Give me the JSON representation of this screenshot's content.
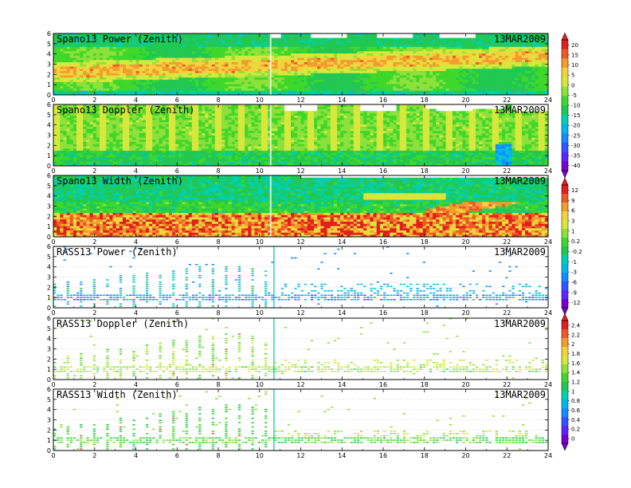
{
  "colors": [
    "#7a00d0",
    "#5a28ff",
    "#2f57ff",
    "#138cff",
    "#00b9ea",
    "#00cfb0",
    "#21c852",
    "#3fd82a",
    "#8ee03a",
    "#d6e83c",
    "#f4d23d",
    "#f39c2f",
    "#ee5a26",
    "#e11f1f"
  ],
  "chart_data": [
    {
      "type": "heatmap",
      "title": "Spano13 Power (Zenith)",
      "date": "13MAR2009",
      "x_ticks": [
        "0",
        "2",
        "4",
        "6",
        "8",
        "10",
        "12",
        "14",
        "16",
        "18",
        "20",
        "22",
        "24"
      ],
      "y_ticks": [
        "0",
        "1",
        "2",
        "3",
        "4",
        "5",
        "6"
      ],
      "xlim": [
        0,
        24
      ],
      "ylim": [
        0,
        6
      ],
      "pattern": "power",
      "colorbar_id": 0
    },
    {
      "type": "heatmap",
      "title": "Spano13 Doppler (Zenith)",
      "date": "13MAR2009",
      "x_ticks": [
        "0",
        "2",
        "4",
        "6",
        "8",
        "10",
        "12",
        "14",
        "16",
        "18",
        "20",
        "22",
        "24"
      ],
      "y_ticks": [
        "0",
        "1",
        "2",
        "3",
        "4",
        "5",
        "6"
      ],
      "xlim": [
        0,
        24
      ],
      "ylim": [
        0,
        6
      ],
      "pattern": "doppler",
      "colorbar_id": 0
    },
    {
      "type": "heatmap",
      "title": "Spano13 Width (Zenith)",
      "date": "13MAR2009",
      "x_ticks": [
        "0",
        "2",
        "4",
        "6",
        "8",
        "10",
        "12",
        "14",
        "16",
        "18",
        "20",
        "22",
        "24"
      ],
      "y_ticks": [
        "0",
        "1",
        "2",
        "3",
        "4",
        "5",
        "6"
      ],
      "xlim": [
        0,
        24
      ],
      "ylim": [
        0,
        6
      ],
      "pattern": "width",
      "colorbar_id": 1
    },
    {
      "type": "heatmap",
      "title": "RASS13 Power (Zenith)",
      "date": "13MAR2009",
      "x_ticks": [
        "0",
        "2",
        "4",
        "6",
        "8",
        "10",
        "12",
        "14",
        "16",
        "18",
        "20",
        "22",
        "24"
      ],
      "y_ticks": [
        "0",
        "1",
        "2",
        "3",
        "4",
        "5",
        "6"
      ],
      "xlim": [
        0,
        24
      ],
      "ylim": [
        0,
        6
      ],
      "pattern": "rass_power",
      "colorbar_id": 1
    },
    {
      "type": "heatmap",
      "title": "RASS13 Doppler (Zenith)",
      "date": "13MAR2009",
      "x_ticks": [
        "0",
        "2",
        "4",
        "6",
        "8",
        "10",
        "12",
        "14",
        "16",
        "18",
        "20",
        "22",
        "24"
      ],
      "y_ticks": [
        "0",
        "1",
        "2",
        "3",
        "4",
        "5",
        "6"
      ],
      "xlim": [
        0,
        24
      ],
      "ylim": [
        0,
        6
      ],
      "pattern": "rass_doppler",
      "colorbar_id": 2
    },
    {
      "type": "heatmap",
      "title": "RASS13 Width (Zenith)",
      "date": "13MAR2009",
      "x_ticks": [
        "0",
        "2",
        "4",
        "6",
        "8",
        "10",
        "12",
        "14",
        "16",
        "18",
        "20",
        "22",
        "24"
      ],
      "y_ticks": [
        "0",
        "1",
        "2",
        "3",
        "4",
        "5",
        "6"
      ],
      "xlim": [
        0,
        24
      ],
      "ylim": [
        0,
        6
      ],
      "pattern": "rass_width",
      "colorbar_id": 2
    }
  ],
  "colorbars": [
    {
      "labels": [
        "20",
        "15",
        "10",
        "5",
        "0",
        "-5",
        "-10",
        "-15",
        "-20",
        "-25",
        "-30",
        "-35",
        "-40"
      ]
    },
    {
      "labels": [
        "12",
        "9",
        "6",
        "3",
        "1",
        "0.2",
        "-0.2",
        "-1",
        "-3",
        "-6",
        "-9",
        "-12"
      ]
    },
    {
      "labels": [
        "2.4",
        "2.2",
        "2",
        "1.8",
        "1.6",
        "1.4",
        "1.2",
        "1",
        "0.8",
        "0.6",
        "0.4",
        "0.2",
        "0"
      ]
    }
  ]
}
